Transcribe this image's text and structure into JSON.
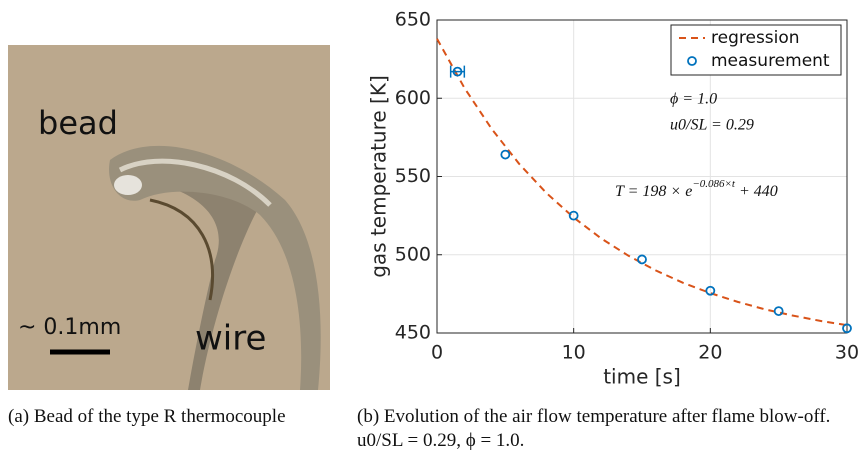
{
  "figure_a": {
    "labels": [
      "bead",
      "~ 0.1mm",
      "wire"
    ],
    "caption": "(a) Bead of the type R thermocouple"
  },
  "chart_data": {
    "type": "line",
    "xlabel": "time [s]",
    "ylabel": "gas temperature [K]",
    "xlim": [
      0,
      30
    ],
    "ylim": [
      450,
      650
    ],
    "xticks": [
      0,
      10,
      20,
      30
    ],
    "yticks": [
      450,
      500,
      550,
      600,
      650
    ],
    "grid": true,
    "legend": "upper right",
    "series": [
      {
        "name": "regression",
        "color": "#d95319",
        "style": "dashed",
        "x": [
          0,
          2,
          4,
          6,
          8,
          10,
          12,
          14,
          16,
          18,
          20,
          22,
          24,
          26,
          28,
          30
        ],
        "values": [
          638,
          606.7,
          580.4,
          558.2,
          539.5,
          523.8,
          510.5,
          499.4,
          490.0,
          482.1,
          475.5,
          469.9,
          465.1,
          461.2,
          457.8,
          455.0
        ]
      },
      {
        "name": "measurement",
        "color": "#0072bd",
        "style": "markers",
        "x": [
          1.5,
          5,
          10,
          15,
          20,
          25,
          30
        ],
        "values": [
          617,
          564,
          525,
          497,
          477,
          464,
          453
        ],
        "x_errors": [
          0.5,
          null,
          null,
          null,
          null,
          null,
          null
        ]
      }
    ],
    "annotations": [
      "ϕ = 1.0",
      "u0/SL = 0.29"
    ],
    "formula": {
      "base": "T = 198 × e",
      "exponent": "−0.086×t",
      "tail": " + 440"
    }
  },
  "caption_b": "(b) Evolution of the air flow temperature after flame blow-off. u0/SL = 0.29, ϕ = 1.0."
}
